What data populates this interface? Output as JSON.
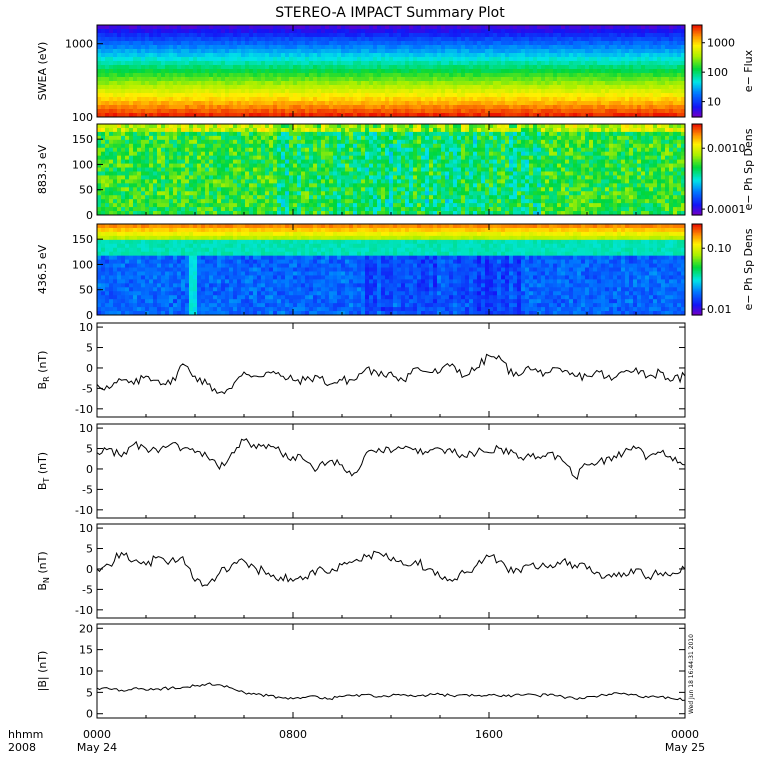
{
  "chart_data": {
    "type": "line",
    "title": "STEREO-A IMPACT Summary Plot",
    "x_time_labels": [
      "0000",
      "0800",
      "1600",
      "0000"
    ],
    "x_date_labels": [
      "May 24",
      "",
      "",
      "May 25"
    ],
    "x_left_label_top": "hhmm",
    "x_left_label_bottom": "2008",
    "timestamp": "Wed Jun 18 16:44:31 2010",
    "xlim_hours": [
      0,
      24
    ],
    "spectrograms": [
      {
        "id": "swea",
        "ylabel": "SWEA (eV)",
        "y_ticks": [
          "1000",
          "100"
        ],
        "y_scale": "log",
        "ylim": [
          100,
          1800
        ],
        "colorbar_label": "e− Flux",
        "colorbar_ticks": [
          "1000",
          "100",
          "10"
        ],
        "colorbar_scale": "log",
        "colorbar_range": [
          3,
          4000
        ]
      },
      {
        "id": "pad883",
        "ylabel": "883.3 eV",
        "y_ticks": [
          "150",
          "100",
          "50",
          "0"
        ],
        "ylim": [
          0,
          180
        ],
        "colorbar_label": "e− Ph Sp Dens",
        "colorbar_ticks": [
          "0.0010",
          "0.0001"
        ],
        "colorbar_scale": "log",
        "colorbar_range": [
          8e-05,
          0.0025
        ]
      },
      {
        "id": "pad436",
        "ylabel": "436.5 eV",
        "y_ticks": [
          "150",
          "100",
          "50",
          "0"
        ],
        "ylim": [
          0,
          180
        ],
        "colorbar_label": "e− Ph Sp Dens",
        "colorbar_ticks": [
          "0.10",
          "0.01"
        ],
        "colorbar_scale": "log",
        "colorbar_range": [
          0.008,
          0.25
        ]
      }
    ],
    "series": [
      {
        "id": "br",
        "ylabel": "B",
        "ylabel_sub": "R",
        "ylabel_unit": " (nT)",
        "ylim": [
          -12,
          11
        ],
        "y_ticks": [
          "10",
          "5",
          "0",
          "-5",
          "-10"
        ],
        "x": [
          0,
          0.5,
          1,
          1.5,
          2,
          2.5,
          3,
          3.5,
          4,
          4.5,
          5,
          5.5,
          6,
          6.5,
          7,
          7.5,
          8,
          8.5,
          9,
          9.5,
          10,
          10.5,
          11,
          11.5,
          12,
          12.5,
          13,
          13.5,
          14,
          14.5,
          15,
          15.5,
          16,
          16.5,
          17,
          17.5,
          18,
          18.5,
          19,
          19.5,
          20,
          20.5,
          21,
          21.5,
          22,
          22.5,
          23,
          23.5,
          24
        ],
        "values": [
          -4,
          -5,
          -3,
          -4,
          -2,
          -3,
          -4,
          1,
          -2,
          -4,
          -6,
          -5,
          -1,
          -2,
          -1,
          -2,
          -3,
          -3,
          -2,
          -4,
          -3,
          -3,
          0,
          -2,
          -1,
          -3,
          0,
          -1,
          -1,
          1,
          -2,
          0,
          3,
          2,
          -2,
          0,
          -1,
          -1,
          -1,
          -2,
          -2,
          -1,
          -3,
          -1,
          0,
          -2,
          -1,
          -3,
          -2
        ]
      },
      {
        "id": "bt",
        "ylabel": "B",
        "ylabel_sub": "T",
        "ylabel_unit": " (nT)",
        "ylim": [
          -12,
          11
        ],
        "y_ticks": [
          "10",
          "5",
          "0",
          "-5",
          "-10"
        ],
        "x": [
          0,
          0.5,
          1,
          1.5,
          2,
          2.5,
          3,
          3.5,
          4,
          4.5,
          5,
          5.5,
          6,
          6.5,
          7,
          7.5,
          8,
          8.5,
          9,
          9.5,
          10,
          10.5,
          11,
          11.5,
          12,
          12.5,
          13,
          13.5,
          14,
          14.5,
          15,
          15.5,
          16,
          16.5,
          17,
          17.5,
          18,
          18.5,
          19,
          19.5,
          20,
          20.5,
          21,
          21.5,
          22,
          22.5,
          23,
          23.5,
          24
        ],
        "values": [
          4,
          5,
          3,
          6,
          5,
          4,
          6,
          5,
          4,
          3,
          0,
          4,
          7,
          5,
          6,
          4,
          3,
          2,
          0,
          2,
          1,
          -1,
          4,
          5,
          4,
          5,
          5,
          4,
          5,
          4,
          3,
          4,
          4,
          5,
          4,
          3,
          3,
          4,
          2,
          -2,
          1,
          2,
          2,
          4,
          5,
          3,
          4,
          2,
          1
        ]
      },
      {
        "id": "bn",
        "ylabel": "B",
        "ylabel_sub": "N",
        "ylabel_unit": " (nT)",
        "ylim": [
          -12,
          11
        ],
        "y_ticks": [
          "10",
          "5",
          "0",
          "-5",
          "-10"
        ],
        "x": [
          0,
          0.5,
          1,
          1.5,
          2,
          2.5,
          3,
          3.5,
          4,
          4.5,
          5,
          5.5,
          6,
          6.5,
          7,
          7.5,
          8,
          8.5,
          9,
          9.5,
          10,
          10.5,
          11,
          11.5,
          12,
          12.5,
          13,
          13.5,
          14,
          14.5,
          15,
          15.5,
          16,
          16.5,
          17,
          17.5,
          18,
          18.5,
          19,
          19.5,
          20,
          20.5,
          21,
          21.5,
          22,
          22.5,
          23,
          23.5,
          24
        ],
        "values": [
          0,
          1,
          4,
          2,
          1,
          3,
          2,
          3,
          -3,
          -4,
          -1,
          1,
          2,
          0,
          -1,
          -2,
          -3,
          -2,
          0,
          -1,
          1,
          2,
          3,
          4,
          2,
          1,
          2,
          0,
          -2,
          -3,
          -1,
          1,
          3,
          2,
          -1,
          1,
          0,
          1,
          2,
          1,
          0,
          -1,
          -2,
          -1,
          0,
          -2,
          -1,
          -1,
          0
        ]
      },
      {
        "id": "bmag",
        "ylabel": "|B| (nT)",
        "ylabel_sub": "",
        "ylabel_unit": "",
        "ylim": [
          -1,
          21
        ],
        "y_ticks": [
          "20",
          "15",
          "10",
          "5",
          "0"
        ],
        "x": [
          0,
          0.5,
          1,
          1.5,
          2,
          2.5,
          3,
          3.5,
          4,
          4.5,
          5,
          5.5,
          6,
          6.5,
          7,
          7.5,
          8,
          8.5,
          9,
          9.5,
          10,
          10.5,
          11,
          11.5,
          12,
          12.5,
          13,
          13.5,
          14,
          14.5,
          15,
          15.5,
          16,
          16.5,
          17,
          17.5,
          18,
          18.5,
          19,
          19.5,
          20,
          20.5,
          21,
          21.5,
          22,
          22.5,
          23,
          23.5,
          24
        ],
        "values": [
          6,
          5.8,
          5.5,
          6,
          5.5,
          5.8,
          6,
          6.2,
          6.5,
          7,
          6.8,
          6,
          5,
          4.5,
          4.2,
          3.8,
          3.5,
          3.8,
          4,
          3.5,
          4,
          4.2,
          4.5,
          4,
          4.2,
          4.5,
          4,
          4.3,
          4.5,
          4.2,
          4.5,
          4.2,
          4.5,
          4,
          4.3,
          4.5,
          4.2,
          4.6,
          4,
          3.5,
          4,
          4.2,
          4.5,
          4.8,
          4.5,
          3.8,
          4,
          3.5,
          3.2
        ]
      }
    ]
  }
}
